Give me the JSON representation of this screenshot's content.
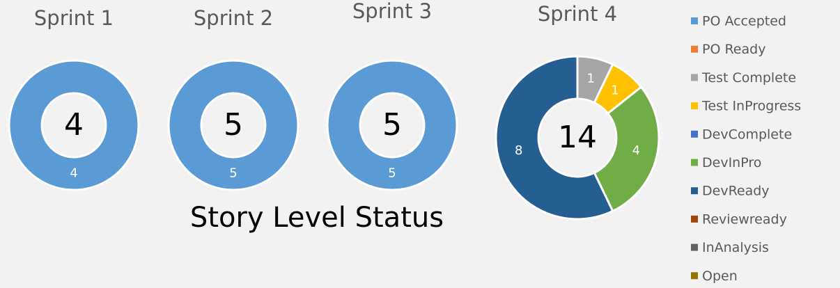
{
  "title": "Story Level Status",
  "chart_data": [
    {
      "type": "donut",
      "title": "Sprint 1",
      "total": 4,
      "categories": [
        "PO Accepted",
        "PO Ready",
        "Test Complete",
        "Test InProgress",
        "DevComplete",
        "DevInPro",
        "DevReady",
        "Reviewready",
        "InAnalysis",
        "Open"
      ],
      "colors": [
        "#5b9bd5",
        "#ed7d31",
        "#a5a5a5",
        "#ffc000",
        "#4472c4",
        "#70ad47",
        "#255e91",
        "#9e480e",
        "#636363",
        "#997300"
      ],
      "values": [
        4,
        0,
        0,
        0,
        0,
        0,
        0,
        0,
        0,
        0
      ]
    },
    {
      "type": "donut",
      "title": "Sprint 2",
      "total": 5,
      "categories": [
        "PO Accepted",
        "PO Ready",
        "Test Complete",
        "Test InProgress",
        "DevComplete",
        "DevInPro",
        "DevReady",
        "Reviewready",
        "InAnalysis",
        "Open"
      ],
      "colors": [
        "#5b9bd5",
        "#ed7d31",
        "#a5a5a5",
        "#ffc000",
        "#4472c4",
        "#70ad47",
        "#255e91",
        "#9e480e",
        "#636363",
        "#997300"
      ],
      "values": [
        5,
        0,
        0,
        0,
        0,
        0,
        0,
        0,
        0,
        0
      ]
    },
    {
      "type": "donut",
      "title": "Sprint 3",
      "total": 5,
      "categories": [
        "PO Accepted",
        "PO Ready",
        "Test Complete",
        "Test InProgress",
        "DevComplete",
        "DevInPro",
        "DevReady",
        "Reviewready",
        "InAnalysis",
        "Open"
      ],
      "colors": [
        "#5b9bd5",
        "#ed7d31",
        "#a5a5a5",
        "#ffc000",
        "#4472c4",
        "#70ad47",
        "#255e91",
        "#9e480e",
        "#636363",
        "#997300"
      ],
      "values": [
        5,
        0,
        0,
        0,
        0,
        0,
        0,
        0,
        0,
        0
      ]
    },
    {
      "type": "donut",
      "title": "Sprint 4",
      "total": 14,
      "categories": [
        "PO Accepted",
        "PO Ready",
        "Test Complete",
        "Test InProgress",
        "DevComplete",
        "DevInPro",
        "DevReady",
        "Reviewready",
        "InAnalysis",
        "Open"
      ],
      "colors": [
        "#5b9bd5",
        "#ed7d31",
        "#a5a5a5",
        "#ffc000",
        "#4472c4",
        "#70ad47",
        "#255e91",
        "#9e480e",
        "#636363",
        "#997300"
      ],
      "values": [
        0,
        0,
        1,
        1,
        0,
        4,
        8,
        0,
        0,
        0
      ]
    }
  ]
}
